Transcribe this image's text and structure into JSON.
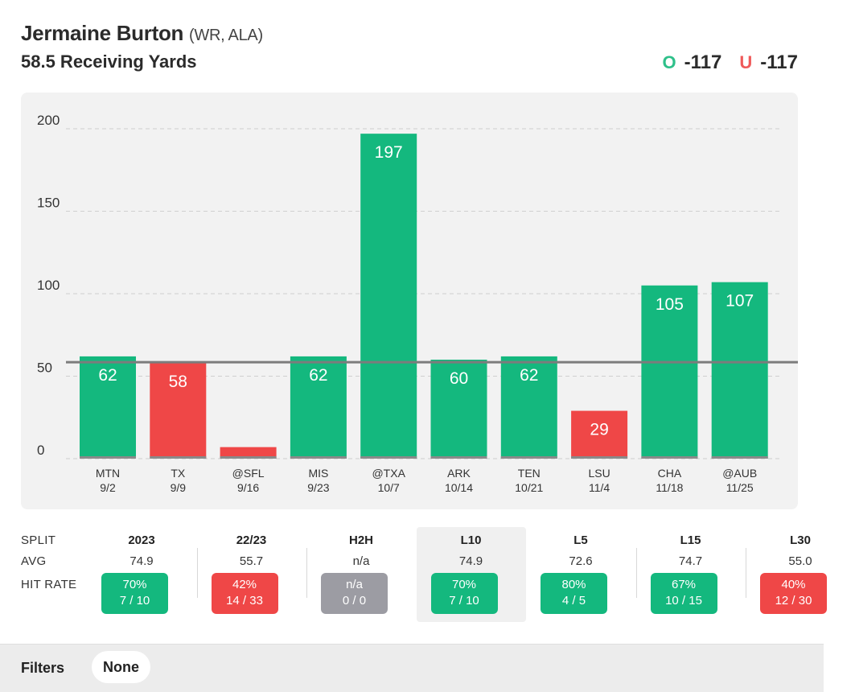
{
  "header": {
    "player_name": "Jermaine Burton",
    "player_meta": "(WR, ALA)",
    "prop_line": "58.5 Receiving Yards",
    "over_letter": "O",
    "over_odds": "-117",
    "under_letter": "U",
    "under_odds": "-117"
  },
  "colors": {
    "green": "#14b87e",
    "red": "#ef4747",
    "gray": "#9c9ca3",
    "over_accent": "#2ec08a",
    "under_accent": "#ef5a5a"
  },
  "chart_data": {
    "type": "bar",
    "title": "58.5 Receiving Yards",
    "line": 58.5,
    "ylim": [
      0,
      200
    ],
    "yticks": [
      0,
      50,
      100,
      150,
      200
    ],
    "grid": true,
    "categories": [
      {
        "opp": "MTN",
        "date": "9/2"
      },
      {
        "opp": "TX",
        "date": "9/9"
      },
      {
        "opp": "@SFL",
        "date": "9/16"
      },
      {
        "opp": "MIS",
        "date": "9/23"
      },
      {
        "opp": "@TXA",
        "date": "10/7"
      },
      {
        "opp": "ARK",
        "date": "10/14"
      },
      {
        "opp": "TEN",
        "date": "10/21"
      },
      {
        "opp": "LSU",
        "date": "11/4"
      },
      {
        "opp": "CHA",
        "date": "11/18"
      },
      {
        "opp": "@AUB",
        "date": "11/25"
      }
    ],
    "values": [
      62,
      58,
      7,
      62,
      197,
      60,
      62,
      29,
      105,
      107
    ],
    "labels": [
      "62",
      "58",
      "",
      "62",
      "197",
      "60",
      "62",
      "29",
      "105",
      "107"
    ]
  },
  "splits": {
    "row_labels": {
      "split": "SPLIT",
      "avg": "AVG",
      "hit_rate": "HIT RATE"
    },
    "active": "L10",
    "columns": [
      {
        "name": "2023",
        "avg": "74.9",
        "pct": "70%",
        "frac": "7 / 10",
        "tone": "green"
      },
      {
        "name": "22/23",
        "avg": "55.7",
        "pct": "42%",
        "frac": "14 / 33",
        "tone": "red"
      },
      {
        "name": "H2H",
        "avg": "n/a",
        "pct": "n/a",
        "frac": "0 / 0",
        "tone": "gray"
      },
      {
        "name": "L10",
        "avg": "74.9",
        "pct": "70%",
        "frac": "7 / 10",
        "tone": "green"
      },
      {
        "name": "L5",
        "avg": "72.6",
        "pct": "80%",
        "frac": "4 / 5",
        "tone": "green"
      },
      {
        "name": "L15",
        "avg": "74.7",
        "pct": "67%",
        "frac": "10 / 15",
        "tone": "green"
      },
      {
        "name": "L30",
        "avg": "55.0",
        "pct": "40%",
        "frac": "12 / 30",
        "tone": "red"
      }
    ]
  },
  "filters": {
    "label": "Filters",
    "value": "None"
  }
}
